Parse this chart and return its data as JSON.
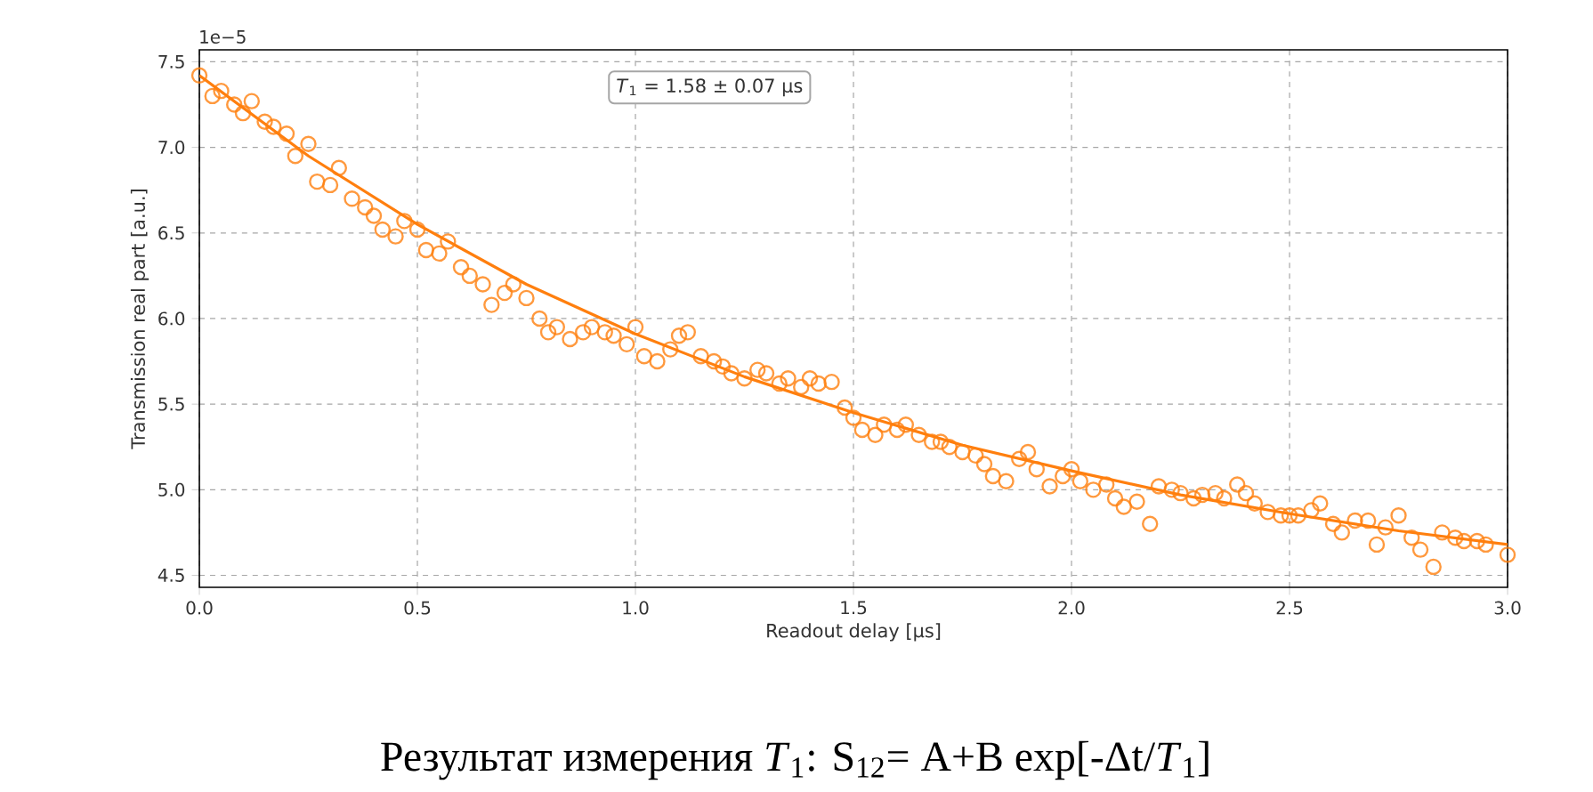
{
  "chart_data": {
    "type": "scatter",
    "xlabel": "Readout delay [μs]",
    "ylabel": "Transmission real part [a.u.]",
    "annotations": [
      "1e−5",
      "*T*$_{1}$ = 1.58 ± 0.07 μs",
      "Результат измерения *T*$_{1}$: S$_{12}$= A+B exp[-Δt/*T*$_{1}$]"
    ],
    "xlim": [
      0,
      3.0
    ],
    "ylim": [
      4.43,
      7.57
    ],
    "xticks": [
      {
        "value": 0,
        "label": "0.0"
      },
      {
        "value": 0.5,
        "label": "0.5"
      },
      {
        "value": 1.0,
        "label": "1.0"
      },
      {
        "value": 1.5,
        "label": "1.5"
      },
      {
        "value": 2.0,
        "label": "2.0"
      },
      {
        "value": 2.5,
        "label": "2.5"
      },
      {
        "value": 3.0,
        "label": "3.0"
      }
    ],
    "yticks": [
      {
        "value": 4.5,
        "label": "4.5"
      },
      {
        "value": 5.0,
        "label": "5.0"
      },
      {
        "value": 5.5,
        "label": "5.5"
      },
      {
        "value": 6.0,
        "label": "6.0"
      },
      {
        "value": 6.5,
        "label": "6.5"
      },
      {
        "value": 7.0,
        "label": "7.0"
      },
      {
        "value": 7.5,
        "label": "7.5"
      }
    ],
    "grid": true,
    "series": [
      {
        "marker": "circle",
        "color": "#ff7f0e",
        "x": [
          0.0,
          0.03,
          0.05,
          0.08,
          0.1,
          0.12,
          0.15,
          0.17,
          0.2,
          0.22,
          0.25,
          0.27,
          0.3,
          0.32,
          0.35,
          0.38,
          0.4,
          0.42,
          0.45,
          0.47,
          0.5,
          0.52,
          0.55,
          0.57,
          0.6,
          0.62,
          0.65,
          0.67,
          0.7,
          0.72,
          0.75,
          0.78,
          0.8,
          0.82,
          0.85,
          0.88,
          0.9,
          0.93,
          0.95,
          0.98,
          1.0,
          1.02,
          1.05,
          1.08,
          1.1,
          1.12,
          1.15,
          1.18,
          1.2,
          1.22,
          1.25,
          1.28,
          1.3,
          1.33,
          1.35,
          1.38,
          1.4,
          1.42,
          1.45,
          1.48,
          1.5,
          1.52,
          1.55,
          1.57,
          1.6,
          1.62,
          1.65,
          1.68,
          1.7,
          1.72,
          1.75,
          1.78,
          1.8,
          1.82,
          1.85,
          1.88,
          1.9,
          1.92,
          1.95,
          1.98,
          2.0,
          2.02,
          2.05,
          2.08,
          2.1,
          2.12,
          2.15,
          2.18,
          2.2,
          2.23,
          2.25,
          2.28,
          2.3,
          2.33,
          2.35,
          2.38,
          2.4,
          2.42,
          2.45,
          2.48,
          2.5,
          2.52,
          2.55,
          2.57,
          2.6,
          2.62,
          2.65,
          2.68,
          2.7,
          2.72,
          2.75,
          2.78,
          2.8,
          2.83,
          2.85,
          2.88,
          2.9,
          2.93,
          2.95,
          3.0
        ],
        "values": [
          7.42,
          7.3,
          7.33,
          7.25,
          7.2,
          7.27,
          7.15,
          7.12,
          7.08,
          6.95,
          7.02,
          6.8,
          6.78,
          6.88,
          6.7,
          6.65,
          6.6,
          6.52,
          6.48,
          6.57,
          6.52,
          6.4,
          6.38,
          6.45,
          6.3,
          6.25,
          6.2,
          6.08,
          6.15,
          6.2,
          6.12,
          6.0,
          5.92,
          5.95,
          5.88,
          5.92,
          5.95,
          5.92,
          5.9,
          5.85,
          5.95,
          5.78,
          5.75,
          5.82,
          5.9,
          5.92,
          5.78,
          5.75,
          5.72,
          5.68,
          5.65,
          5.7,
          5.68,
          5.62,
          5.65,
          5.6,
          5.65,
          5.62,
          5.63,
          5.48,
          5.42,
          5.35,
          5.32,
          5.38,
          5.35,
          5.38,
          5.32,
          5.28,
          5.28,
          5.25,
          5.22,
          5.2,
          5.15,
          5.08,
          5.05,
          5.18,
          5.22,
          5.12,
          5.02,
          5.08,
          5.12,
          5.05,
          5.0,
          5.03,
          4.95,
          4.9,
          4.93,
          4.8,
          5.02,
          5.0,
          4.98,
          4.95,
          4.97,
          4.98,
          4.95,
          5.03,
          4.98,
          4.92,
          4.87,
          4.85,
          4.85,
          4.85,
          4.88,
          4.92,
          4.8,
          4.75,
          4.82,
          4.82,
          4.68,
          4.78,
          4.85,
          4.72,
          4.65,
          4.55,
          4.75,
          4.72,
          4.7,
          4.7,
          4.68,
          4.62
        ]
      },
      {
        "type": "line",
        "marker": "none",
        "line_style": "solid",
        "color": "#ff7f0e",
        "x": [
          0,
          0.25,
          0.5,
          0.75,
          1.0,
          1.25,
          1.5,
          1.75,
          2.0,
          2.25,
          2.5,
          2.75,
          3.0
        ],
        "values": [
          7.42,
          6.95,
          6.55,
          6.2,
          5.91,
          5.66,
          5.45,
          5.26,
          5.11,
          4.97,
          4.86,
          4.76,
          4.68
        ]
      }
    ]
  }
}
